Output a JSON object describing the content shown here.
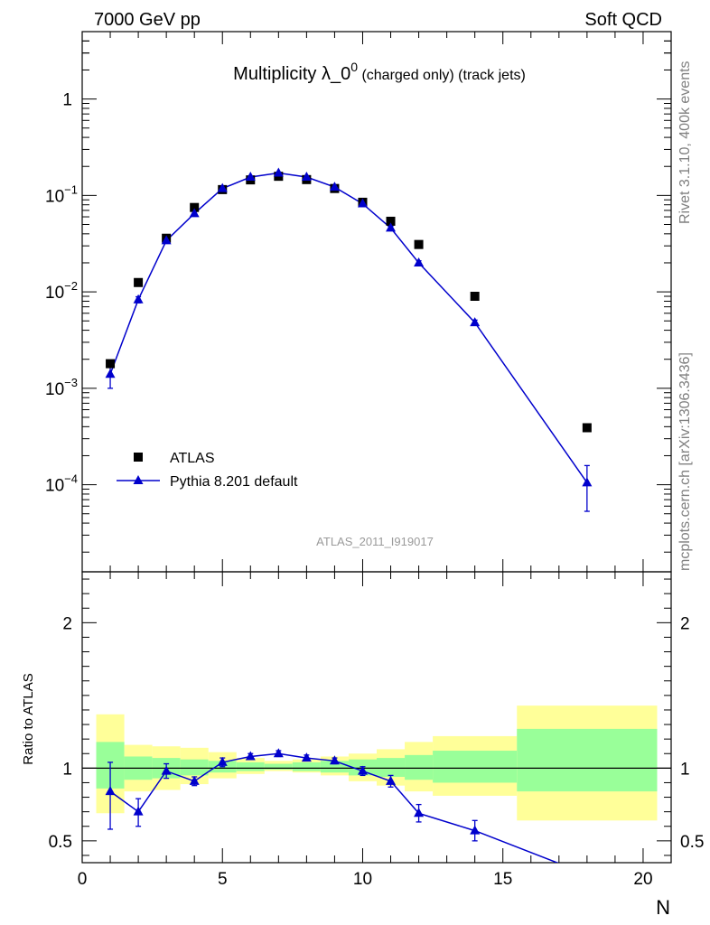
{
  "header": {
    "left": "7000 GeV pp",
    "right": "Soft QCD",
    "side_top": "Rivet 3.1.10,  400k events",
    "side_bottom": "mcplots.cern.ch [arXiv:1306.3436]"
  },
  "colors": {
    "data": "#000000",
    "mc": "#0000cc",
    "band_inner": "#99ff99",
    "band_outer": "#ffff99"
  },
  "chart_data": [
    {
      "type": "scatter",
      "title_main": "Multiplicity λ_0",
      "title_sup": "0",
      "title_tail": " (charged only) (track jets)",
      "annotation": "ATLAS_2011_I919017",
      "yscale": "log",
      "ylim": [
        1.25e-05,
        5
      ],
      "xlim": [
        0,
        21
      ],
      "ytick_labels": [
        {
          "v": 1,
          "base": "1",
          "exp": ""
        },
        {
          "v": 0.1,
          "base": "10",
          "exp": "−1"
        },
        {
          "v": 0.01,
          "base": "10",
          "exp": "−2"
        },
        {
          "v": 0.001,
          "base": "10",
          "exp": "−3"
        },
        {
          "v": 0.0001,
          "base": "10",
          "exp": "−4"
        }
      ],
      "legend": [
        {
          "name": "ATLAS",
          "marker": "square"
        },
        {
          "name": "Pythia 8.201 default",
          "marker": "triangle"
        }
      ],
      "legend_position": "bottom-left",
      "series": [
        {
          "name": "ATLAS",
          "x": [
            1,
            2,
            3,
            4,
            5,
            6,
            7,
            8,
            9,
            10,
            11,
            12,
            14,
            18
          ],
          "y": [
            0.0018,
            0.0125,
            0.036,
            0.075,
            0.115,
            0.145,
            0.158,
            0.146,
            0.118,
            0.085,
            0.054,
            0.031,
            0.009,
            0.00039
          ]
        },
        {
          "name": "Pythia 8.201 default",
          "x": [
            1,
            2,
            3,
            4,
            5,
            6,
            7,
            8,
            9,
            10,
            11,
            12,
            14,
            18
          ],
          "y": [
            0.0014,
            0.0083,
            0.034,
            0.065,
            0.118,
            0.155,
            0.171,
            0.155,
            0.122,
            0.082,
            0.046,
            0.02,
            0.0048,
            0.000105
          ],
          "yerr_low": [
            0.0004,
            0.0006,
            0.001,
            0.002,
            0.002,
            0.002,
            0.002,
            0.002,
            0.002,
            0.002,
            0.002,
            0.001,
            0.0003,
            5.2e-05
          ],
          "yerr_high": [
            0.0004,
            0.0006,
            0.001,
            0.002,
            0.002,
            0.002,
            0.002,
            0.002,
            0.002,
            0.002,
            0.002,
            0.001,
            0.0003,
            5.3e-05
          ]
        }
      ]
    },
    {
      "type": "scatter",
      "ylabel": "Ratio to ATLAS",
      "xlabel": "N",
      "ylim": [
        0.35,
        2.35
      ],
      "xlim": [
        0,
        21
      ],
      "xticks": [
        0,
        5,
        10,
        15,
        20
      ],
      "yticks": [
        0.5,
        1,
        2
      ],
      "reference": 1,
      "bands": [
        {
          "xlo": 0.5,
          "xhi": 1.5,
          "inner": [
            0.86,
            1.18
          ],
          "outer": [
            0.69,
            1.37
          ]
        },
        {
          "xlo": 1.5,
          "xhi": 2.5,
          "inner": [
            0.92,
            1.08
          ],
          "outer": [
            0.84,
            1.16
          ]
        },
        {
          "xlo": 2.5,
          "xhi": 3.5,
          "inner": [
            0.93,
            1.07
          ],
          "outer": [
            0.85,
            1.15
          ]
        },
        {
          "xlo": 3.5,
          "xhi": 4.5,
          "inner": [
            0.95,
            1.06
          ],
          "outer": [
            0.89,
            1.14
          ]
        },
        {
          "xlo": 4.5,
          "xhi": 5.5,
          "inner": [
            0.97,
            1.05
          ],
          "outer": [
            0.93,
            1.11
          ]
        },
        {
          "xlo": 5.5,
          "xhi": 6.5,
          "inner": [
            0.98,
            1.04
          ],
          "outer": [
            0.96,
            1.07
          ]
        },
        {
          "xlo": 6.5,
          "xhi": 7.5,
          "inner": [
            0.99,
            1.03
          ],
          "outer": [
            0.98,
            1.05
          ]
        },
        {
          "xlo": 7.5,
          "xhi": 8.5,
          "inner": [
            0.98,
            1.04
          ],
          "outer": [
            0.97,
            1.06
          ]
        },
        {
          "xlo": 8.5,
          "xhi": 9.5,
          "inner": [
            0.97,
            1.05
          ],
          "outer": [
            0.95,
            1.08
          ]
        },
        {
          "xlo": 9.5,
          "xhi": 10.5,
          "inner": [
            0.95,
            1.06
          ],
          "outer": [
            0.91,
            1.1
          ]
        },
        {
          "xlo": 10.5,
          "xhi": 11.5,
          "inner": [
            0.94,
            1.07
          ],
          "outer": [
            0.88,
            1.13
          ]
        },
        {
          "xlo": 11.5,
          "xhi": 12.5,
          "inner": [
            0.92,
            1.09
          ],
          "outer": [
            0.84,
            1.18
          ]
        },
        {
          "xlo": 12.5,
          "xhi": 15.5,
          "inner": [
            0.9,
            1.12
          ],
          "outer": [
            0.81,
            1.22
          ]
        },
        {
          "xlo": 15.5,
          "xhi": 20.5,
          "inner": [
            0.84,
            1.27
          ],
          "outer": [
            0.64,
            1.43
          ]
        }
      ],
      "series": [
        {
          "name": "Pythia 8.201 default",
          "x": [
            1,
            2,
            3,
            4,
            5,
            6,
            7,
            8,
            9,
            10,
            11,
            12,
            14,
            18
          ],
          "y": [
            0.84,
            0.7,
            0.98,
            0.91,
            1.04,
            1.08,
            1.1,
            1.07,
            1.05,
            0.98,
            0.91,
            0.69,
            0.57,
            0.27
          ],
          "yerr_low": [
            0.26,
            0.1,
            0.05,
            0.03,
            0.03,
            0.02,
            0.02,
            0.02,
            0.02,
            0.03,
            0.04,
            0.06,
            0.07,
            0.0
          ],
          "yerr_high": [
            0.2,
            0.09,
            0.05,
            0.03,
            0.03,
            0.02,
            0.02,
            0.02,
            0.02,
            0.03,
            0.04,
            0.06,
            0.07,
            0.0
          ]
        }
      ]
    }
  ]
}
